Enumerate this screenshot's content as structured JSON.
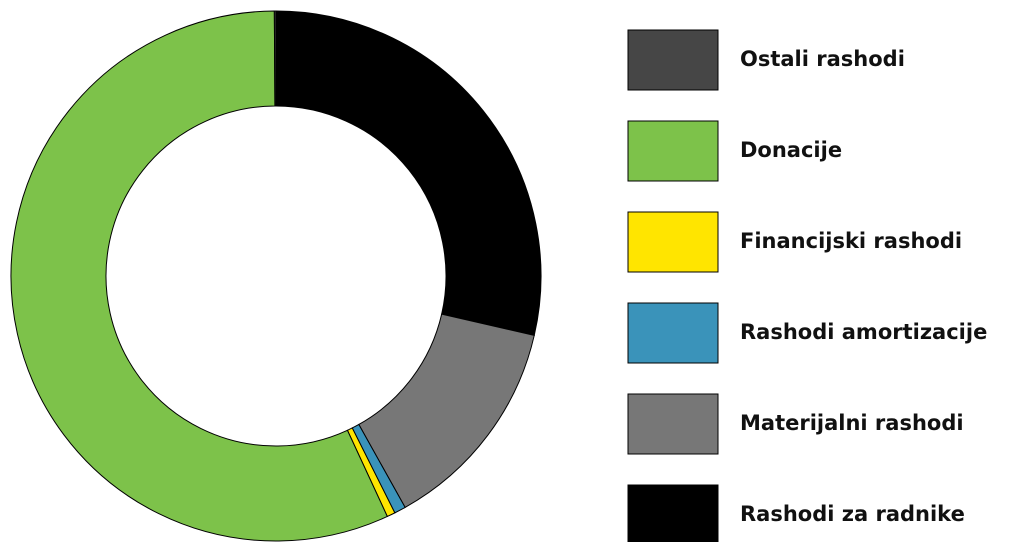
{
  "chart_data": {
    "type": "pie",
    "categories": [
      "Rashodi za radnike",
      "Materijalni rashodi",
      "Rashodi amortizacije",
      "Financijski rashodi",
      "Donacije",
      "Ostali rashodi"
    ],
    "values": [
      28.6,
      13.3,
      0.7,
      0.5,
      56.8,
      0.1
    ],
    "colors": [
      "#000000",
      "#777777",
      "#3a93ba",
      "#ffe500",
      "#7dc24a",
      "#464646"
    ],
    "donut": true
  }
}
